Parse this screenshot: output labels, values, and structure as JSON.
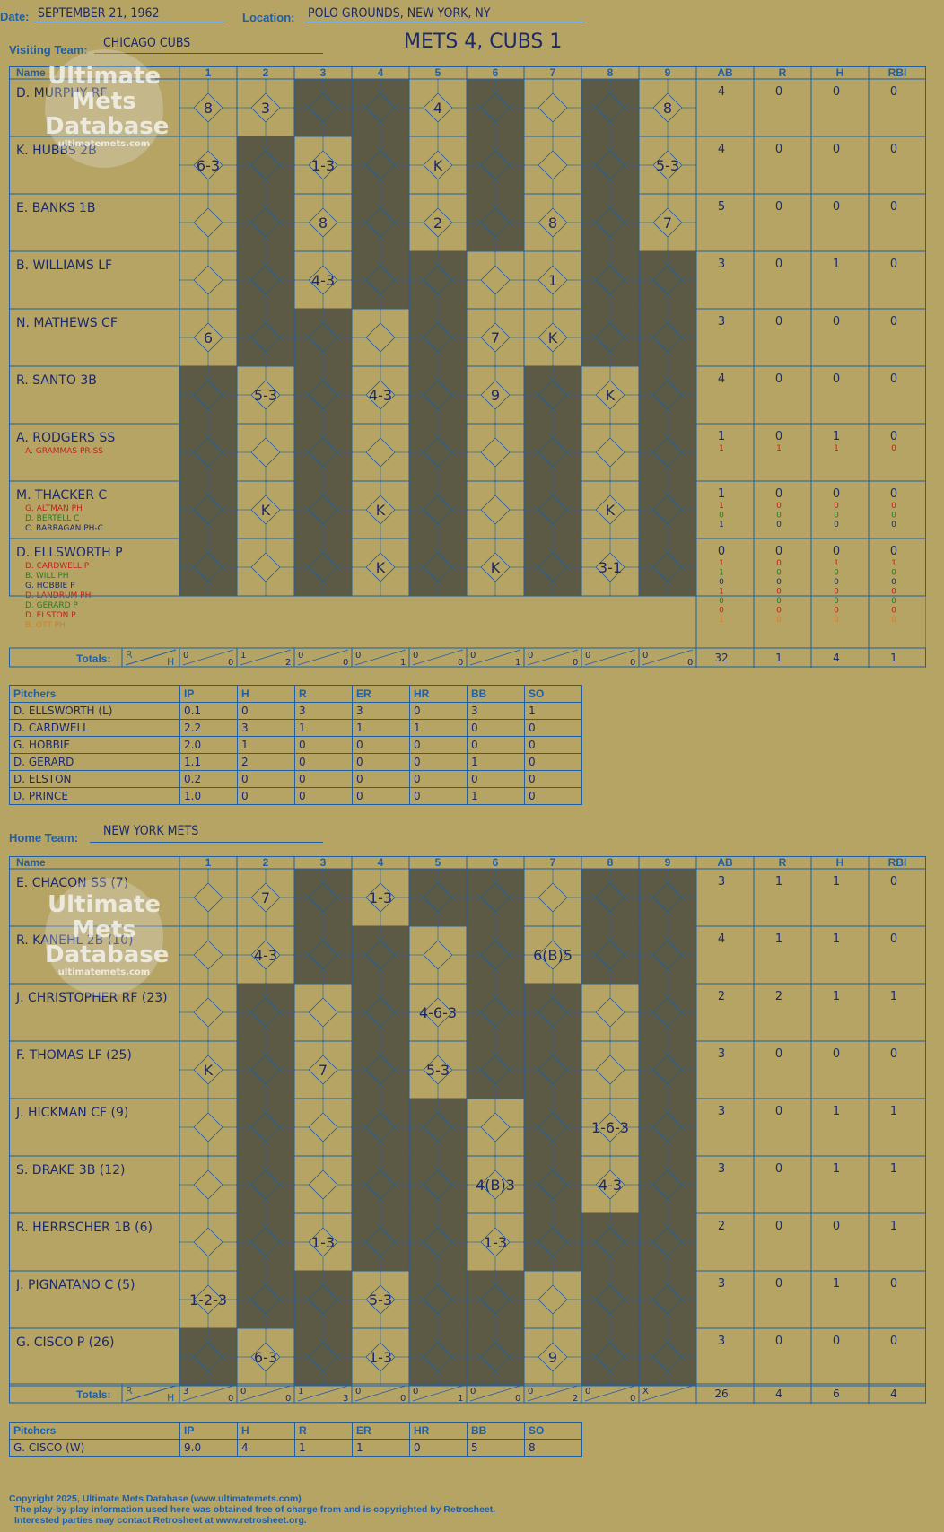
{
  "header": {
    "date_label": "Date:",
    "date": "SEPTEMBER 21, 1962",
    "location_label": "Location:",
    "location": "POLO GROUNDS, NEW YORK, NY",
    "visiting_label": "Visiting Team:",
    "visiting_team": "CHICAGO CUBS",
    "home_label": "Home Team:",
    "home_team": "NEW YORK METS",
    "result": "METS 4, CUBS 1"
  },
  "columns": {
    "name": "Name",
    "innings": [
      "1",
      "2",
      "3",
      "4",
      "5",
      "6",
      "7",
      "8",
      "9"
    ],
    "stats": [
      "AB",
      "R",
      "H",
      "RBI"
    ],
    "totals_label": "Totals:",
    "totals_r": "R",
    "totals_h": "H"
  },
  "colors": {
    "background": "#b6a464",
    "grid_blue": "#1f5fa8",
    "shade": "#5c5a45",
    "ink": "#1c2a6b",
    "red": "#c42020",
    "green": "#2a7a25",
    "orange": "#e07a20"
  },
  "visitors": {
    "batters": [
      {
        "name": "D. MURPHY RF",
        "subs": [],
        "stats": [
          [
            "4",
            "0",
            "0",
            "0"
          ]
        ],
        "cells": [
          "8",
          "3",
          "",
          "",
          "4",
          "",
          "",
          "",
          "8"
        ],
        "shaded": [
          3,
          4,
          6,
          8
        ]
      },
      {
        "name": "K. HUBBS 2B",
        "subs": [],
        "stats": [
          [
            "4",
            "0",
            "0",
            "0"
          ]
        ],
        "cells": [
          "6-3",
          "",
          "1-3",
          "",
          "K",
          "",
          "",
          "",
          "5-3"
        ],
        "shaded": [
          2,
          4,
          6,
          8
        ]
      },
      {
        "name": "E. BANKS 1B",
        "subs": [],
        "stats": [
          [
            "5",
            "0",
            "0",
            "0"
          ]
        ],
        "cells": [
          "",
          "",
          "8",
          "",
          "2",
          "",
          "8",
          "",
          "7"
        ],
        "shaded": [
          2,
          4,
          6,
          8
        ]
      },
      {
        "name": "B. WILLIAMS LF",
        "subs": [],
        "stats": [
          [
            "3",
            "0",
            "1",
            "0"
          ]
        ],
        "cells": [
          "",
          "",
          "4-3",
          "",
          "",
          "",
          "1",
          "",
          ""
        ],
        "shaded": [
          2,
          4,
          5,
          8,
          9
        ]
      },
      {
        "name": "N. MATHEWS CF",
        "subs": [],
        "stats": [
          [
            "3",
            "0",
            "0",
            "0"
          ]
        ],
        "cells": [
          "6",
          "",
          "",
          "",
          "",
          "7",
          "K",
          "",
          ""
        ],
        "shaded": [
          2,
          3,
          5,
          8,
          9
        ]
      },
      {
        "name": "R. SANTO 3B",
        "subs": [],
        "stats": [
          [
            "4",
            "0",
            "0",
            "0"
          ]
        ],
        "cells": [
          "",
          "5-3",
          "",
          "4-3",
          "",
          "9",
          "",
          "K",
          ""
        ],
        "shaded": [
          1,
          3,
          5,
          7,
          9
        ]
      },
      {
        "name": "A. RODGERS SS",
        "subs": [
          {
            "name": "A. GRAMMAS PR-SS",
            "color": "#c42020"
          }
        ],
        "stats": [
          [
            "1",
            "0",
            "1",
            "0"
          ],
          [
            "1",
            "1",
            "1",
            "0"
          ]
        ],
        "cells": [
          "",
          "",
          "",
          "",
          "",
          "",
          "",
          "",
          ""
        ],
        "shaded": [
          1,
          3,
          5,
          7,
          9
        ]
      },
      {
        "name": "M. THACKER C",
        "subs": [
          {
            "name": "G. ALTMAN PH",
            "color": "#c42020"
          },
          {
            "name": "D. BERTELL C",
            "color": "#2a7a25"
          },
          {
            "name": "C. BARRAGAN PH-C",
            "color": "#1c2a6b"
          }
        ],
        "stats": [
          [
            "1",
            "0",
            "0",
            "0"
          ],
          [
            "1",
            "0",
            "0",
            "0"
          ],
          [
            "0",
            "0",
            "0",
            "0"
          ],
          [
            "1",
            "0",
            "0",
            "0"
          ]
        ],
        "cells": [
          "",
          "K",
          "",
          "K",
          "",
          "",
          "",
          "K",
          ""
        ],
        "shaded": [
          1,
          3,
          5,
          7,
          9
        ]
      },
      {
        "name": "D. ELLSWORTH P",
        "subs": [
          {
            "name": "D. CARDWELL P",
            "color": "#c42020"
          },
          {
            "name": "B. WILL PH",
            "color": "#2a7a25"
          },
          {
            "name": "G. HOBBIE P",
            "color": "#1c2a6b"
          },
          {
            "name": "D. LANDRUM PH",
            "color": "#c42020"
          },
          {
            "name": "D. GERARD P",
            "color": "#2a7a25"
          },
          {
            "name": "D. ELSTON P",
            "color": "#c42020"
          },
          {
            "name": "B. OTT PH",
            "color": "#e07a20"
          }
        ],
        "stats": [
          [
            "0",
            "0",
            "0",
            "0"
          ],
          [
            "1",
            "0",
            "1",
            "1"
          ],
          [
            "1",
            "0",
            "0",
            "0"
          ],
          [
            "0",
            "0",
            "0",
            "0"
          ],
          [
            "1",
            "0",
            "0",
            "0"
          ],
          [
            "0",
            "0",
            "0",
            "0"
          ],
          [
            "0",
            "0",
            "0",
            "0"
          ],
          [
            "1",
            "0",
            "0",
            "0"
          ]
        ],
        "cells": [
          "",
          "",
          "",
          "K",
          "",
          "K",
          "",
          "3-1",
          ""
        ],
        "shaded": [
          1,
          3,
          5,
          7,
          9
        ]
      }
    ],
    "totals": [
      [
        "0",
        "0"
      ],
      [
        "1",
        "2"
      ],
      [
        "0",
        "0"
      ],
      [
        "0",
        "1"
      ],
      [
        "0",
        "0"
      ],
      [
        "0",
        "1"
      ],
      [
        "0",
        "0"
      ],
      [
        "0",
        "0"
      ],
      [
        "0",
        "0"
      ]
    ],
    "total_stats": [
      "32",
      "1",
      "4",
      "1"
    ]
  },
  "visitors_pitching": {
    "header": [
      "Pitchers",
      "IP",
      "H",
      "R",
      "ER",
      "HR",
      "BB",
      "SO"
    ],
    "rows": [
      [
        "D. ELLSWORTH (L)",
        "0.1",
        "0",
        "3",
        "3",
        "0",
        "3",
        "1"
      ],
      [
        "D. CARDWELL",
        "2.2",
        "3",
        "1",
        "1",
        "1",
        "0",
        "0"
      ],
      [
        "G. HOBBIE",
        "2.0",
        "1",
        "0",
        "0",
        "0",
        "0",
        "0"
      ],
      [
        "D. GERARD",
        "1.1",
        "2",
        "0",
        "0",
        "0",
        "1",
        "0"
      ],
      [
        "D. ELSTON",
        "0.2",
        "0",
        "0",
        "0",
        "0",
        "0",
        "0"
      ],
      [
        "D. PRINCE",
        "1.0",
        "0",
        "0",
        "0",
        "0",
        "1",
        "0"
      ]
    ]
  },
  "home": {
    "batters": [
      {
        "name": "E. CHACON SS (7)",
        "subs": [],
        "stats": [
          [
            "3",
            "1",
            "1",
            "0"
          ]
        ],
        "cells": [
          "",
          "7",
          "",
          "1-3",
          "",
          "",
          "",
          "",
          ""
        ],
        "shaded": [
          3,
          5,
          6,
          8,
          9
        ]
      },
      {
        "name": "R. KANEHL 2B (10)",
        "subs": [],
        "stats": [
          [
            "4",
            "1",
            "1",
            "0"
          ]
        ],
        "cells": [
          "",
          "4-3",
          "",
          "",
          "",
          "",
          "6(B)5",
          "",
          ""
        ],
        "shaded": [
          3,
          4,
          6,
          8,
          9
        ]
      },
      {
        "name": "J. CHRISTOPHER RF (23)",
        "subs": [],
        "stats": [
          [
            "2",
            "2",
            "1",
            "1"
          ]
        ],
        "cells": [
          "",
          "",
          "",
          "",
          "4-6-3",
          "",
          "",
          "",
          ""
        ],
        "shaded": [
          2,
          4,
          6,
          7,
          9
        ]
      },
      {
        "name": "F. THOMAS LF (25)",
        "subs": [],
        "stats": [
          [
            "3",
            "0",
            "0",
            "0"
          ]
        ],
        "cells": [
          "K",
          "",
          "7",
          "",
          "5-3",
          "",
          "",
          "",
          ""
        ],
        "shaded": [
          2,
          4,
          6,
          7,
          9
        ]
      },
      {
        "name": "J. HICKMAN CF (9)",
        "subs": [],
        "stats": [
          [
            "3",
            "0",
            "1",
            "1"
          ]
        ],
        "cells": [
          "",
          "",
          "",
          "",
          "",
          "",
          "",
          "1-6-3",
          ""
        ],
        "shaded": [
          2,
          4,
          5,
          7,
          9
        ]
      },
      {
        "name": "S. DRAKE 3B (12)",
        "subs": [],
        "stats": [
          [
            "3",
            "0",
            "1",
            "1"
          ]
        ],
        "cells": [
          "",
          "",
          "",
          "",
          "",
          "4(B)3",
          "",
          "4-3",
          ""
        ],
        "shaded": [
          2,
          4,
          5,
          7,
          9
        ]
      },
      {
        "name": "R. HERRSCHER 1B (6)",
        "subs": [],
        "stats": [
          [
            "2",
            "0",
            "0",
            "1"
          ]
        ],
        "cells": [
          "",
          "",
          "1-3",
          "",
          "",
          "1-3",
          "",
          "",
          ""
        ],
        "shaded": [
          2,
          4,
          5,
          7,
          8,
          9
        ]
      },
      {
        "name": "J. PIGNATANO C (5)",
        "subs": [],
        "stats": [
          [
            "3",
            "0",
            "1",
            "0"
          ]
        ],
        "cells": [
          "1-2-3",
          "",
          "",
          "5-3",
          "",
          "",
          "",
          "",
          ""
        ],
        "shaded": [
          2,
          3,
          5,
          6,
          8,
          9
        ]
      },
      {
        "name": "G. CISCO P (26)",
        "subs": [],
        "stats": [
          [
            "3",
            "0",
            "0",
            "0"
          ]
        ],
        "cells": [
          "",
          "6-3",
          "",
          "1-3",
          "",
          "",
          "9",
          "",
          ""
        ],
        "shaded": [
          1,
          3,
          5,
          6,
          8,
          9
        ]
      }
    ],
    "totals": [
      [
        "3",
        "0"
      ],
      [
        "0",
        "0"
      ],
      [
        "1",
        "3"
      ],
      [
        "0",
        "0"
      ],
      [
        "0",
        "1"
      ],
      [
        "0",
        "0"
      ],
      [
        "0",
        "2"
      ],
      [
        "0",
        "0"
      ],
      [
        "X",
        ""
      ]
    ],
    "total_stats": [
      "26",
      "4",
      "6",
      "4"
    ]
  },
  "home_pitching": {
    "header": [
      "Pitchers",
      "IP",
      "H",
      "R",
      "ER",
      "HR",
      "BB",
      "SO"
    ],
    "rows": [
      [
        "G. CISCO (W)",
        "9.0",
        "4",
        "1",
        "1",
        "0",
        "5",
        "8"
      ]
    ]
  },
  "logo": {
    "line1": "Ultimate",
    "line2": "Mets",
    "line3": "Database",
    "line4": "ultimatemets.com"
  },
  "footer": {
    "line1": "Copyright 2025, Ultimate Mets Database (www.ultimatemets.com)",
    "line2": "The play-by-play information used here was obtained free of charge from and is copyrighted by Retrosheet.",
    "line3": "Interested parties may contact Retrosheet at www.retrosheet.org."
  }
}
